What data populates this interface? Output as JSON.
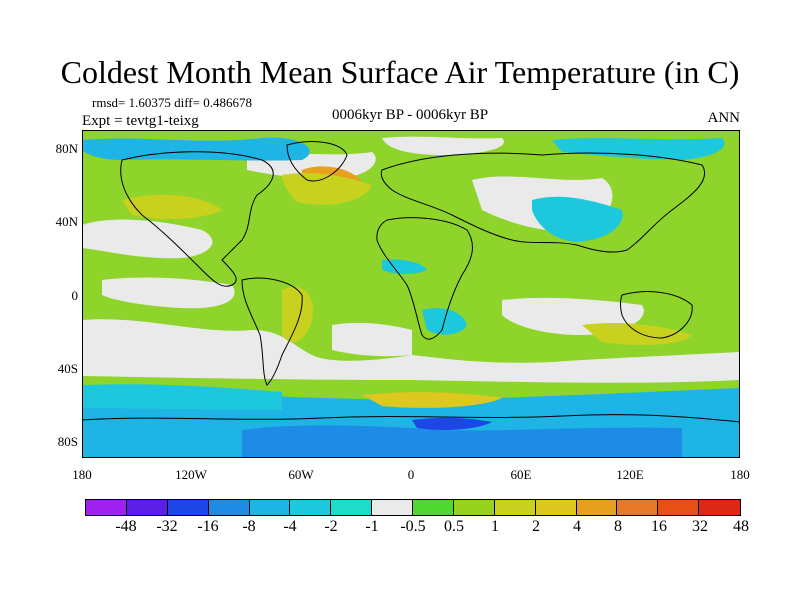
{
  "title": "Coldest Month Mean Surface Air Temperature (in C)",
  "stats": "rmsd= 1.60375 diff= 0.486678",
  "experiment": "Expt = tevtg1-teixg",
  "period": "0006kyr BP - 0006kyr BP",
  "season": "ANN",
  "map": {
    "lat_ticks": [
      "80N",
      "40N",
      "0",
      "40S",
      "80S"
    ],
    "lon_ticks": [
      "180",
      "120W",
      "60W",
      "0",
      "60E",
      "120E",
      "180"
    ]
  },
  "colorbar": {
    "colors": [
      "#a020f0",
      "#5a1ee6",
      "#1e46e6",
      "#1e8ce6",
      "#1eb4e6",
      "#1ec8dc",
      "#1edcc8",
      "#eaeaea",
      "#4ed830",
      "#96d21e",
      "#c8d21e",
      "#dcc81e",
      "#e6a01e",
      "#e67828",
      "#e65014",
      "#dc2814"
    ],
    "labels": [
      "-48",
      "-32",
      "-16",
      "-8",
      "-4",
      "-2",
      "-1",
      "-0.5",
      "0.5",
      "1",
      "2",
      "4",
      "8",
      "16",
      "32",
      "48"
    ]
  }
}
